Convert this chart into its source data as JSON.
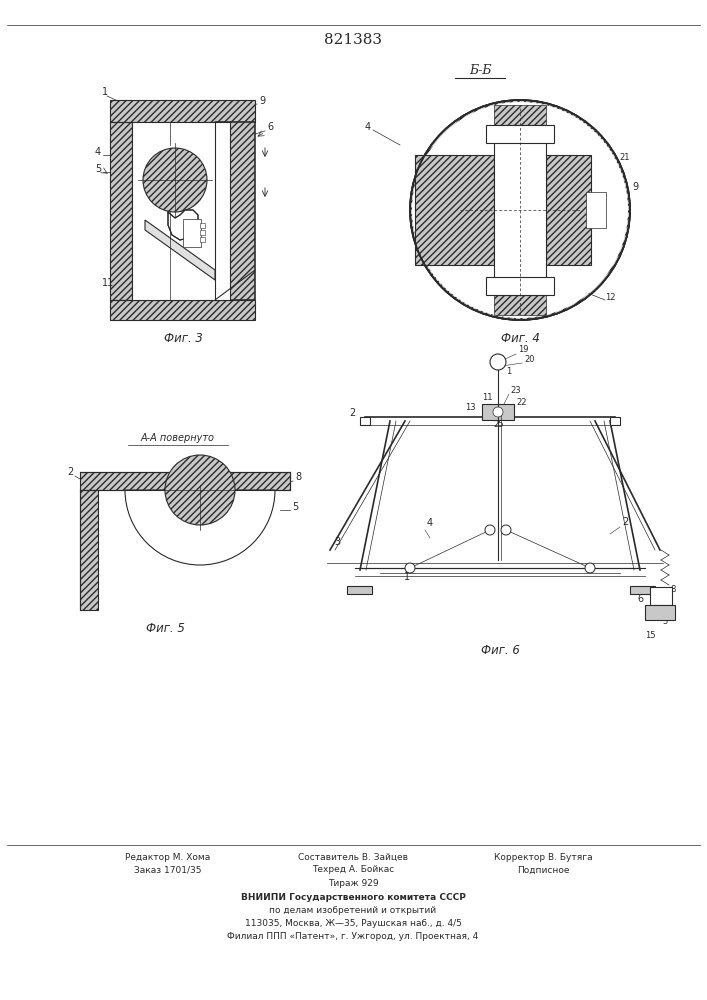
{
  "patent_number": "821383",
  "background_color": "#ffffff",
  "line_color": "#2a2a2a",
  "fig_width": 7.07,
  "fig_height": 10.0,
  "dpi": 100,
  "fig3_label": "Фиг. 3",
  "fig4_label": "Фиг. 4",
  "fig5_label": "Фиг. 5",
  "fig6_label": "Фиг. 6",
  "bb_label": "Б-Б",
  "aa_label": "А-А повернуто",
  "fig_italic": "Фиг"
}
